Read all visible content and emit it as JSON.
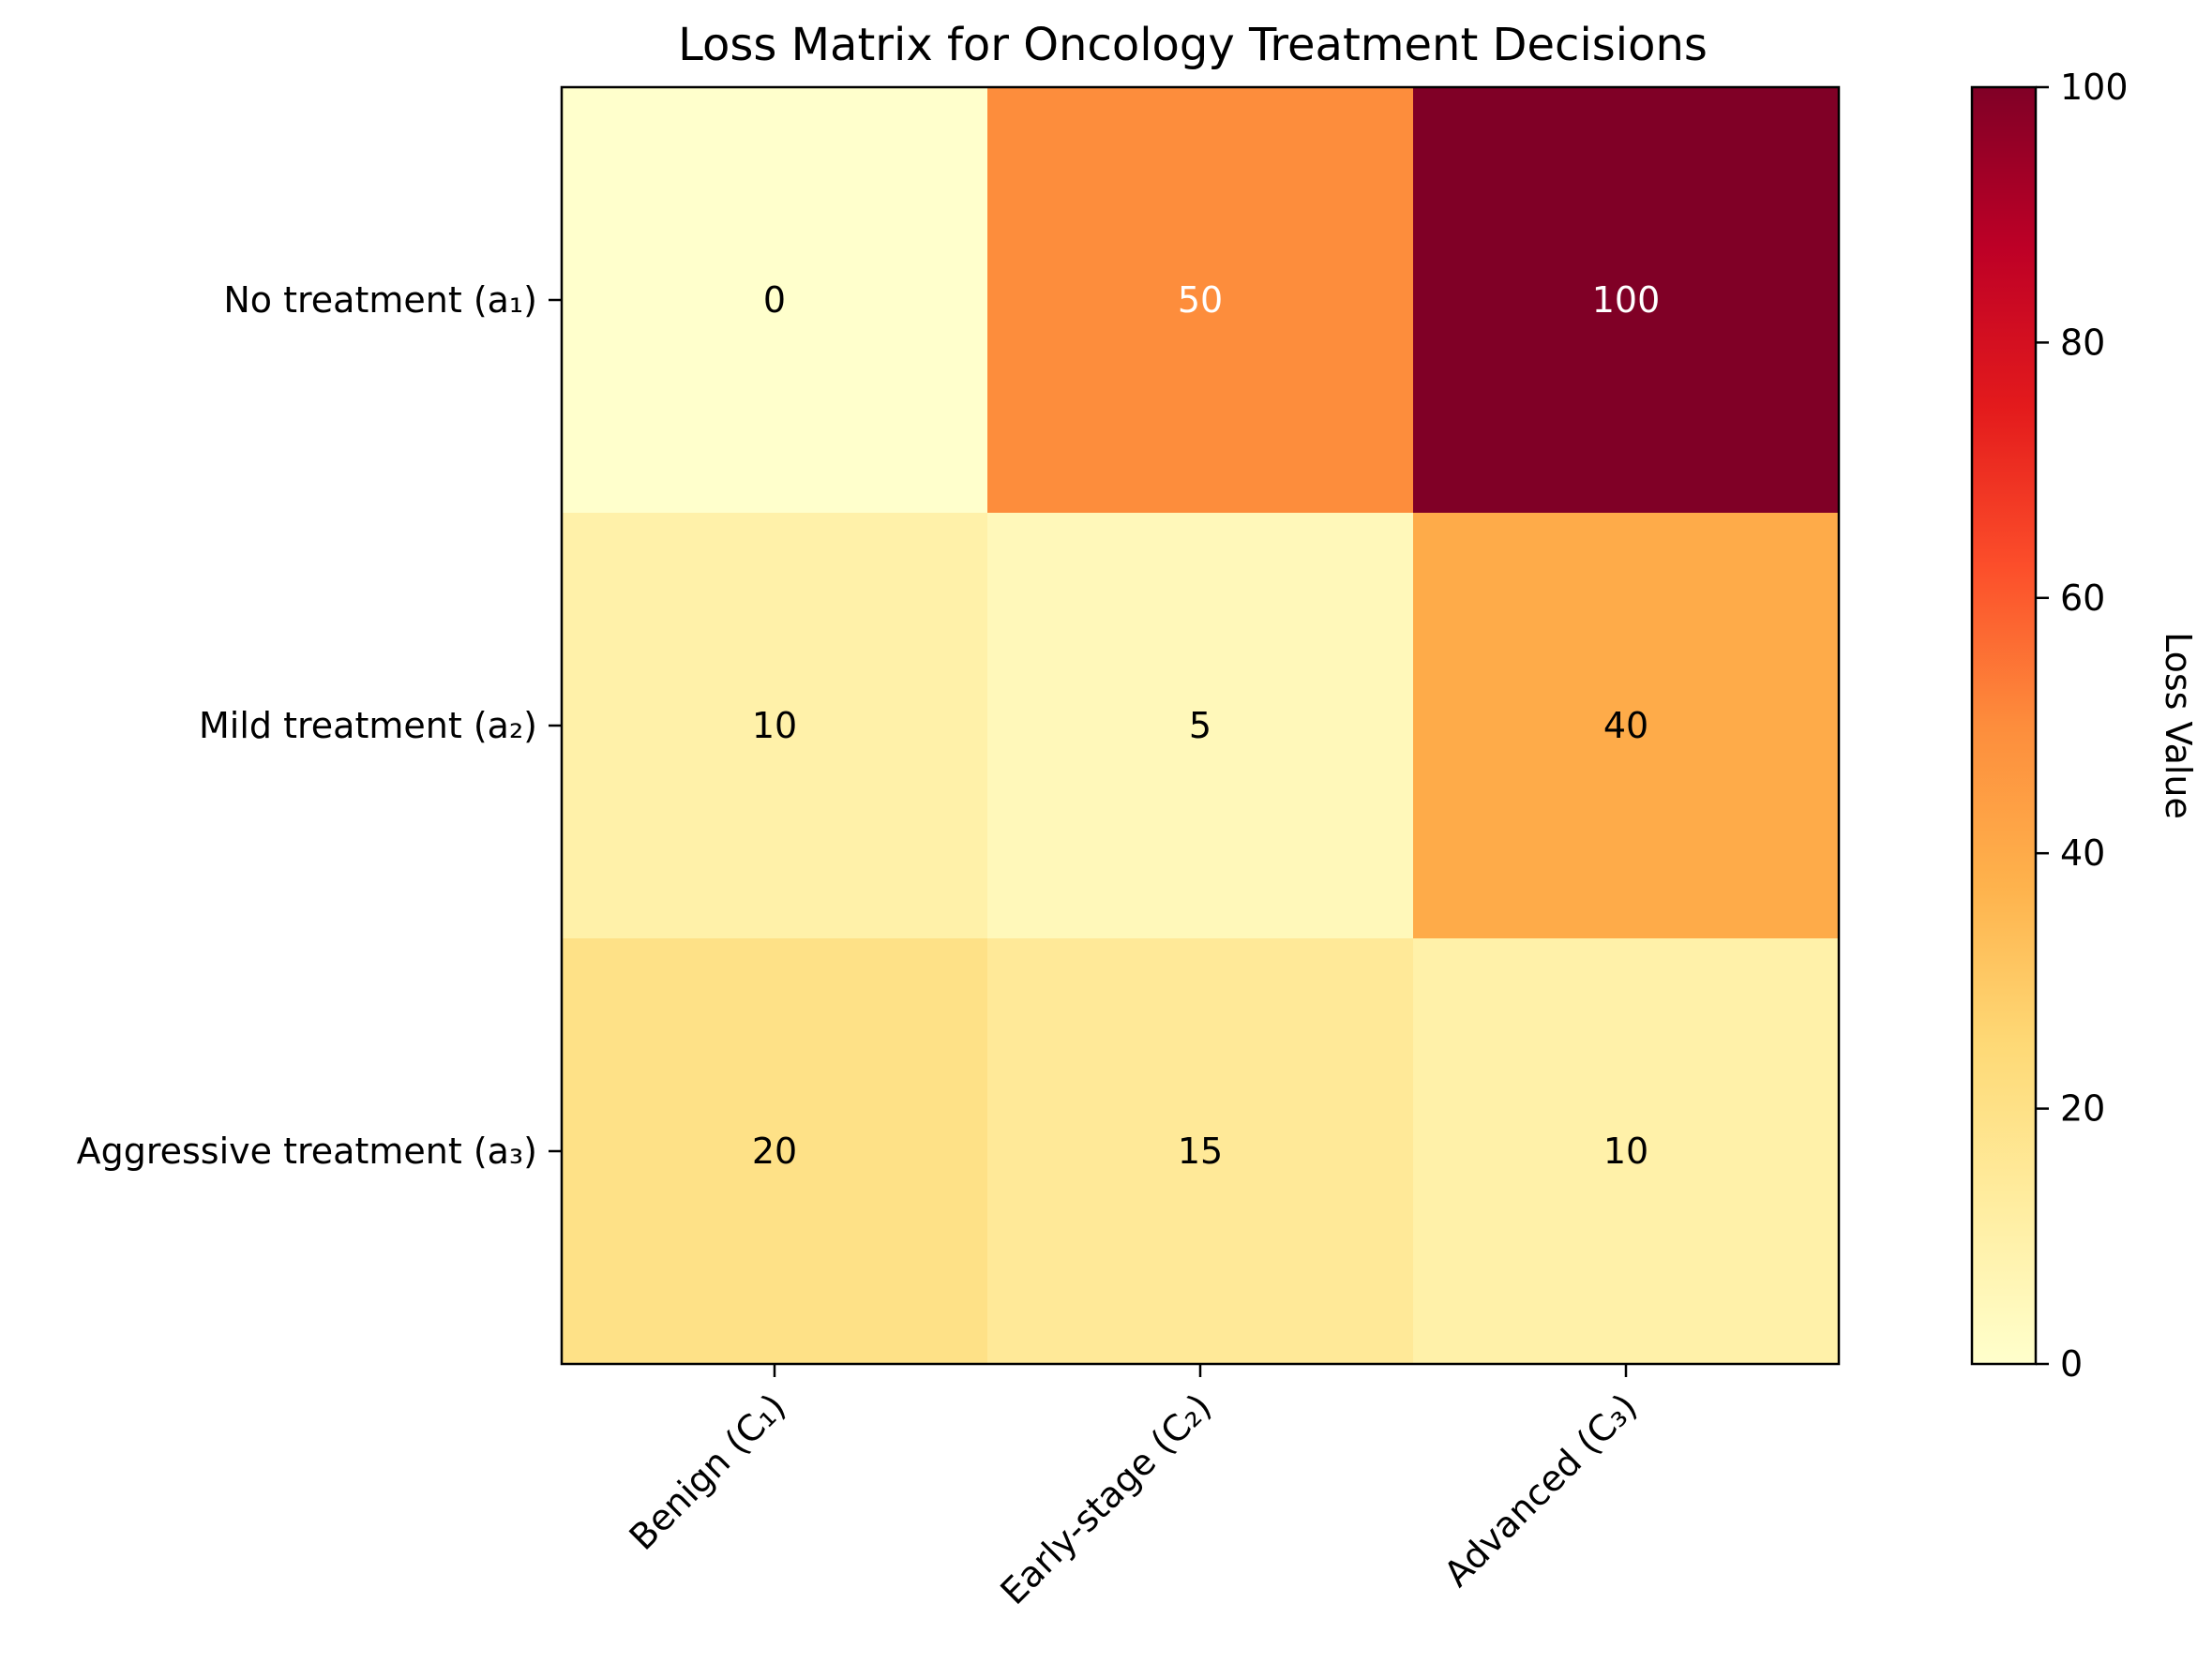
{
  "chart_data": {
    "type": "heatmap",
    "title": "Loss Matrix for Oncology Treatment Decisions",
    "rows": [
      "No treatment (a₁)",
      "Mild treatment (a₂)",
      "Aggressive treatment (a₃)"
    ],
    "columns": [
      "Benign (C₁)",
      "Early-stage (C₂)",
      "Advanced (C₃)"
    ],
    "values": [
      [
        0,
        50,
        100
      ],
      [
        10,
        5,
        40
      ],
      [
        20,
        15,
        10
      ]
    ],
    "value_range": [
      0,
      100
    ],
    "colormap": "YlOrRd",
    "colorbar": {
      "label": "Loss Value",
      "ticks": [
        0,
        20,
        40,
        60,
        80,
        100
      ]
    },
    "annotation_colors": {
      "dark_bg": "#ffffff",
      "light_bg": "#000000"
    },
    "grid": false
  }
}
